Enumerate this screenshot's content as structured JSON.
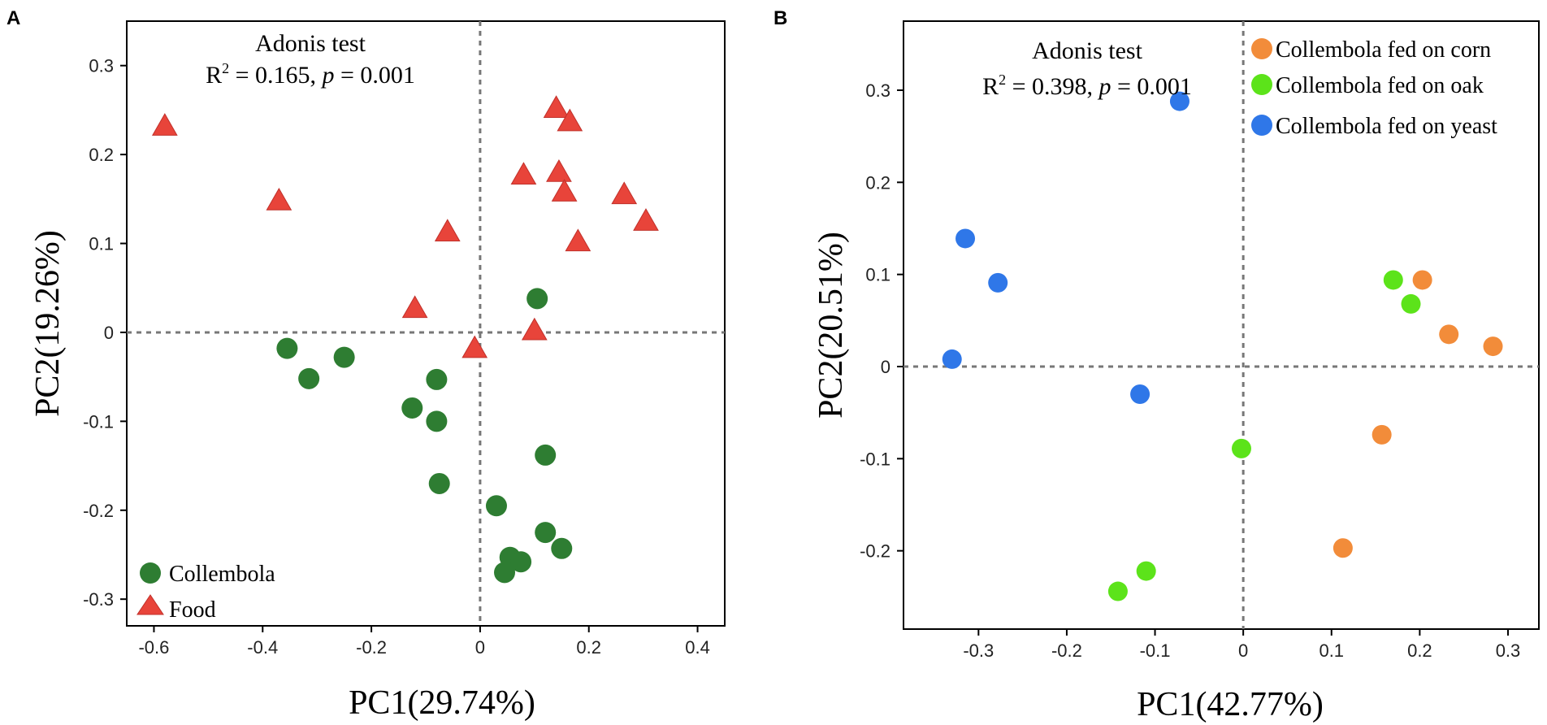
{
  "figure": {
    "panel_a_letter": "A",
    "panel_b_letter": "B"
  },
  "chart_data": [
    {
      "type": "scatter",
      "panel": "A",
      "xlabel": "PC1(29.74%)",
      "ylabel": "PC2(19.26%)",
      "xlim": [
        -0.65,
        0.45
      ],
      "ylim": [
        -0.33,
        0.35
      ],
      "xticks": [
        -0.6,
        -0.4,
        -0.2,
        0,
        0.2,
        0.4
      ],
      "xtick_labels": [
        "-0.6",
        "-0.4",
        "-0.2",
        "0",
        "0.2",
        "0.4"
      ],
      "yticks": [
        0.3,
        0.2,
        0.1,
        0,
        -0.1,
        -0.2,
        -0.3
      ],
      "ytick_labels": [
        "0.3",
        "0.2",
        "0.1",
        "0",
        "-0.1",
        "-0.2",
        "-0.3"
      ],
      "grid": false,
      "zero_lines": true,
      "annotation": {
        "line1": "Adonis test",
        "r_label": "R",
        "r_sup": "2",
        "stat_text": " = 0.165, ",
        "p_label": "p",
        "p_text": " = 0.001"
      },
      "legend_position": "bottom-left",
      "series": [
        {
          "name": "Collembola",
          "marker": "circle",
          "color": "#2e7d32",
          "points": [
            [
              -0.355,
              -0.018
            ],
            [
              -0.315,
              -0.052
            ],
            [
              -0.25,
              -0.028
            ],
            [
              -0.125,
              -0.085
            ],
            [
              -0.08,
              -0.053
            ],
            [
              -0.08,
              -0.1
            ],
            [
              -0.075,
              -0.17
            ],
            [
              0.105,
              0.038
            ],
            [
              0.12,
              -0.138
            ],
            [
              0.03,
              -0.195
            ],
            [
              0.12,
              -0.225
            ],
            [
              0.15,
              -0.243
            ],
            [
              0.055,
              -0.253
            ],
            [
              0.075,
              -0.258
            ],
            [
              0.045,
              -0.27
            ]
          ]
        },
        {
          "name": "Food",
          "marker": "triangle",
          "color": "#e8443a",
          "points": [
            [
              -0.58,
              0.232
            ],
            [
              -0.37,
              0.148
            ],
            [
              -0.06,
              0.113
            ],
            [
              -0.12,
              0.027
            ],
            [
              -0.01,
              -0.018
            ],
            [
              0.1,
              0.002
            ],
            [
              0.08,
              0.177
            ],
            [
              0.14,
              0.252
            ],
            [
              0.165,
              0.237
            ],
            [
              0.145,
              0.18
            ],
            [
              0.155,
              0.158
            ],
            [
              0.265,
              0.155
            ],
            [
              0.305,
              0.125
            ],
            [
              0.18,
              0.102
            ]
          ]
        }
      ]
    },
    {
      "type": "scatter",
      "panel": "B",
      "xlabel": "PC1(42.77%)",
      "ylabel": "PC2(20.51%)",
      "xlim": [
        -0.385,
        0.335
      ],
      "ylim": [
        -0.285,
        0.375
      ],
      "xticks": [
        -0.3,
        -0.2,
        -0.1,
        0,
        0.1,
        0.2,
        0.3
      ],
      "xtick_labels": [
        "-0.3",
        "-0.2",
        "-0.1",
        "0",
        "0.1",
        "0.2",
        "0.3"
      ],
      "yticks": [
        0.3,
        0.2,
        0.1,
        0,
        -0.1,
        -0.2
      ],
      "ytick_labels": [
        "0.3",
        "0.2",
        "0.1",
        "0",
        "-0.1",
        "-0.2"
      ],
      "grid": false,
      "zero_lines": true,
      "annotation": {
        "line1": "Adonis test",
        "r_label": "R",
        "r_sup": "2",
        "stat_text": " = 0.398, ",
        "p_label": "p",
        "p_text": " = 0.001"
      },
      "legend_position": "top-right",
      "series": [
        {
          "name": "Collembola fed on corn",
          "marker": "circle",
          "color": "#f28c3a",
          "points": [
            [
              0.203,
              0.094
            ],
            [
              0.233,
              0.035
            ],
            [
              0.283,
              0.022
            ],
            [
              0.157,
              -0.074
            ],
            [
              0.113,
              -0.197
            ]
          ]
        },
        {
          "name": "Collembola fed on oak",
          "marker": "circle",
          "color": "#5ce31a",
          "points": [
            [
              0.17,
              0.094
            ],
            [
              0.19,
              0.068
            ],
            [
              -0.002,
              -0.089
            ],
            [
              -0.11,
              -0.222
            ],
            [
              -0.142,
              -0.244
            ]
          ]
        },
        {
          "name": "Collembola fed on yeast",
          "marker": "circle",
          "color": "#2f77e8",
          "points": [
            [
              -0.072,
              0.288
            ],
            [
              -0.315,
              0.139
            ],
            [
              -0.278,
              0.091
            ],
            [
              -0.33,
              0.008
            ],
            [
              -0.117,
              -0.03
            ]
          ]
        }
      ]
    }
  ]
}
